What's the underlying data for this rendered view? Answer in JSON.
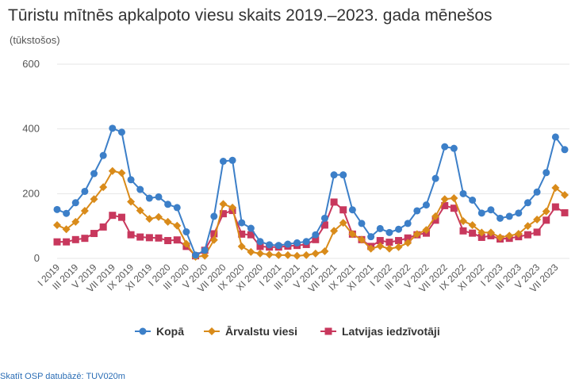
{
  "title": "Tūristu mītnēs apkalpoto viesu skaits 2019.–2023. gada mēnešos",
  "subtitle": "(tūkstošos)",
  "source_link": "Skatīt OSP datubāzē: TUV020m",
  "chart_data": {
    "type": "line",
    "title": "Tūristu mītnēs apkalpoto viesu skaits 2019.–2023. gada mēnešos",
    "subtitle": "(tūkstošos)",
    "ylim": [
      0,
      600
    ],
    "yticks": [
      0,
      200,
      400,
      600
    ],
    "grid": true,
    "legend_position": "bottom",
    "xtick_labels": [
      "I 2019",
      "III 2019",
      "V 2019",
      "VII 2019",
      "IX 2019",
      "XI 2019",
      "I 2020",
      "III 2020",
      "V 2020",
      "VII 2020",
      "IX 2020",
      "XI 2020",
      "I 2021",
      "III 2021",
      "V 2021",
      "VII 2021",
      "IX 2021",
      "XI 2021",
      "I 2022",
      "III 2022",
      "V 2022",
      "VII 2022",
      "IX 2022",
      "XI 2022",
      "I 2023",
      "III 2023",
      "V 2023",
      "VII 2023"
    ],
    "series": [
      {
        "name": "Kopā",
        "color": "#3c7fc8",
        "marker": "circle",
        "values": [
          151,
          139,
          172,
          207,
          262,
          318,
          402,
          390,
          243,
          213,
          186,
          190,
          167,
          157,
          82,
          10,
          25,
          130,
          300,
          303,
          110,
          93,
          52,
          42,
          40,
          44,
          48,
          52,
          73,
          124,
          258,
          258,
          150,
          108,
          67,
          92,
          80,
          90,
          108,
          147,
          165,
          247,
          345,
          340,
          200,
          180,
          140,
          150,
          124,
          130,
          140,
          172,
          205,
          265,
          375,
          336
        ]
      },
      {
        "name": "Ārvalstu viesi",
        "color": "#d98b1a",
        "marker": "diamond",
        "values": [
          103,
          90,
          113,
          147,
          183,
          220,
          270,
          264,
          175,
          148,
          122,
          128,
          113,
          101,
          45,
          5,
          8,
          57,
          168,
          157,
          37,
          20,
          15,
          12,
          10,
          10,
          8,
          10,
          15,
          22,
          85,
          110,
          75,
          58,
          30,
          38,
          30,
          35,
          48,
          75,
          88,
          130,
          183,
          186,
          115,
          103,
          80,
          80,
          65,
          70,
          76,
          100,
          120,
          145,
          218,
          196
        ]
      },
      {
        "name": "Latvijas iedzīvotāji",
        "color": "#c8385d",
        "marker": "square",
        "values": [
          51,
          51,
          58,
          62,
          77,
          97,
          133,
          127,
          73,
          66,
          64,
          63,
          55,
          57,
          37,
          8,
          25,
          76,
          138,
          148,
          75,
          73,
          37,
          35,
          35,
          38,
          40,
          43,
          58,
          103,
          174,
          150,
          75,
          58,
          37,
          55,
          50,
          55,
          63,
          73,
          78,
          118,
          163,
          155,
          85,
          78,
          65,
          70,
          60,
          62,
          67,
          73,
          81,
          118,
          159,
          141
        ]
      }
    ]
  }
}
